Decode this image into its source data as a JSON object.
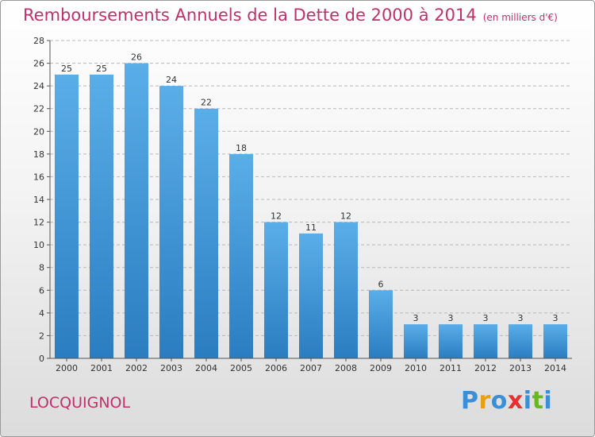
{
  "chart_data": {
    "type": "bar",
    "title": "Remboursements Annuels de la Dette de 2000 à 2014",
    "unit": "(en milliers d'€)",
    "xlabel": "",
    "ylabel": "",
    "categories": [
      "2000",
      "2001",
      "2002",
      "2003",
      "2004",
      "2005",
      "2006",
      "2007",
      "2008",
      "2009",
      "2010",
      "2011",
      "2012",
      "2013",
      "2014"
    ],
    "values": [
      25,
      25,
      26,
      24,
      22,
      18,
      12,
      11,
      12,
      6,
      3,
      3,
      3,
      3,
      3
    ],
    "ylim": [
      0,
      28
    ],
    "yticks": [
      0,
      2,
      4,
      6,
      8,
      10,
      12,
      14,
      16,
      18,
      20,
      22,
      24,
      26,
      28
    ],
    "grid": true,
    "bar_color_top": "#5aaee8",
    "bar_color_bottom": "#2a7dc0",
    "grid_color": "#b8b8b8"
  },
  "commune": "LOCQUIGNOL",
  "logo": {
    "letters": [
      "P",
      "r",
      "o",
      "x",
      "i",
      "t",
      "i"
    ],
    "colors": [
      "#3a8fd6",
      "#e8a010",
      "#3a8fd6",
      "#e83030",
      "#3a8fd6",
      "#6ab820",
      "#3a8fd6"
    ]
  }
}
